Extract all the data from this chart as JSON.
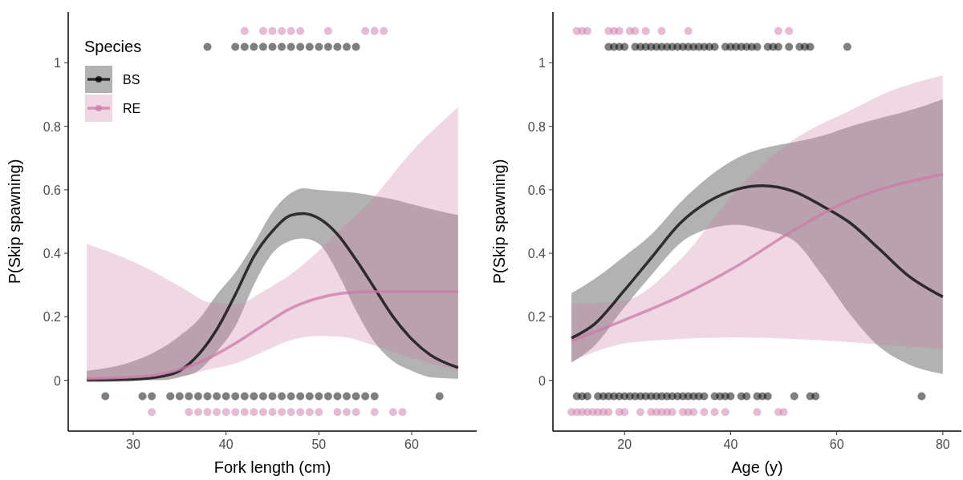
{
  "chart_data": [
    {
      "type": "line",
      "xlabel": "Fork length (cm)",
      "ylabel": "P(Skip spawning)",
      "legend_title": "Species",
      "legend": "top left",
      "grid": false,
      "xlim": [
        23,
        67
      ],
      "xticks": [
        30,
        40,
        50,
        60
      ],
      "ylim": [
        -0.16,
        1.16
      ],
      "yticks": [
        0,
        0.2,
        0.4,
        0.6,
        0.8,
        1
      ],
      "series": [
        {
          "name": "BS",
          "type": "line",
          "color": "#000000",
          "x": [
            25,
            30,
            33,
            35,
            37,
            39,
            41,
            43,
            45,
            47,
            48.3,
            50,
            52,
            54,
            56,
            58,
            60,
            62,
            65
          ],
          "values": [
            0,
            0.003,
            0.012,
            0.03,
            0.08,
            0.16,
            0.27,
            0.39,
            0.47,
            0.52,
            0.525,
            0.51,
            0.46,
            0.38,
            0.29,
            0.2,
            0.13,
            0.08,
            0.04
          ],
          "lower": [
            0,
            0,
            0,
            0.01,
            0.03,
            0.09,
            0.17,
            0.3,
            0.4,
            0.44,
            0.447,
            0.43,
            0.34,
            0.22,
            0.12,
            0.06,
            0.03,
            0.01,
            0.005
          ],
          "upper": [
            0.03,
            0.06,
            0.1,
            0.14,
            0.19,
            0.27,
            0.34,
            0.43,
            0.53,
            0.59,
            0.605,
            0.6,
            0.595,
            0.59,
            0.58,
            0.57,
            0.555,
            0.54,
            0.52
          ]
        },
        {
          "name": "RE",
          "type": "line",
          "color": "#cc79a7",
          "x": [
            25,
            31,
            35.4,
            38.3,
            41.1,
            44,
            46.8,
            49.7,
            52.5,
            55.4,
            60,
            65
          ],
          "values": [
            0.005,
            0.012,
            0.038,
            0.072,
            0.118,
            0.173,
            0.224,
            0.257,
            0.274,
            0.279,
            0.28,
            0.28
          ],
          "lower": [
            0,
            0.004,
            0.015,
            0.035,
            0.054,
            0.09,
            0.125,
            0.14,
            0.137,
            0.115,
            0.07,
            0.03
          ],
          "upper": [
            0.43,
            0.36,
            0.29,
            0.245,
            0.24,
            0.28,
            0.33,
            0.4,
            0.48,
            0.56,
            0.72,
            0.86
          ]
        },
        {
          "type": "scatter",
          "color": "#000000",
          "x": [
            38,
            41,
            42,
            43,
            44,
            45,
            46,
            47,
            48,
            49,
            50,
            51,
            52,
            53,
            54
          ],
          "values": [
            1.05,
            1.05,
            1.05,
            1.05,
            1.05,
            1.05,
            1.05,
            1.05,
            1.05,
            1.05,
            1.05,
            1.05,
            1.05,
            1.05,
            1.05
          ]
        },
        {
          "type": "scatter",
          "color": "#000000",
          "x": [
            27,
            31,
            32,
            34,
            35,
            36,
            37,
            38,
            39,
            40,
            41,
            42,
            43,
            44,
            45,
            46,
            47,
            48,
            49,
            50,
            51,
            52,
            53,
            54,
            55,
            56,
            63
          ],
          "values": [
            -0.05,
            -0.05,
            -0.05,
            -0.05,
            -0.05,
            -0.05,
            -0.05,
            -0.05,
            -0.05,
            -0.05,
            -0.05,
            -0.05,
            -0.05,
            -0.05,
            -0.05,
            -0.05,
            -0.05,
            -0.05,
            -0.05,
            -0.05,
            -0.05,
            -0.05,
            -0.05,
            -0.05,
            -0.05,
            -0.05,
            -0.05
          ]
        },
        {
          "type": "scatter",
          "color": "#cc79a7",
          "x": [
            42,
            44,
            45,
            46,
            47,
            48,
            51,
            55,
            56,
            57
          ],
          "values": [
            1.1,
            1.1,
            1.1,
            1.1,
            1.1,
            1.1,
            1.1,
            1.1,
            1.1,
            1.1
          ]
        },
        {
          "type": "scatter",
          "color": "#cc79a7",
          "x": [
            32,
            36,
            37,
            38,
            39,
            40,
            41,
            42,
            43,
            44,
            45,
            46,
            47,
            48,
            49,
            50,
            52,
            53,
            54,
            56,
            58,
            59
          ],
          "values": [
            -0.1,
            -0.1,
            -0.1,
            -0.1,
            -0.1,
            -0.1,
            -0.1,
            -0.1,
            -0.1,
            -0.1,
            -0.1,
            -0.1,
            -0.1,
            -0.1,
            -0.1,
            -0.1,
            -0.1,
            -0.1,
            -0.1,
            -0.1,
            -0.1,
            -0.1
          ]
        }
      ]
    },
    {
      "type": "line",
      "xlabel": "Age (y)",
      "ylabel": "P(Skip spawning)",
      "grid": false,
      "xlim": [
        6.5,
        83.5
      ],
      "xticks": [
        20,
        40,
        60,
        80
      ],
      "ylim": [
        -0.16,
        1.16
      ],
      "yticks": [
        0,
        0.2,
        0.4,
        0.6,
        0.8,
        1
      ],
      "series": [
        {
          "type": "line",
          "color": "#000000",
          "x": [
            10,
            14.4,
            19.7,
            25.1,
            30.5,
            35.8,
            41.2,
            46,
            51.9,
            57.2,
            62.6,
            68,
            73.3,
            80
          ],
          "values": [
            0.133,
            0.178,
            0.278,
            0.387,
            0.495,
            0.563,
            0.602,
            0.613,
            0.595,
            0.55,
            0.495,
            0.414,
            0.332,
            0.263
          ],
          "lower": [
            0.056,
            0.11,
            0.224,
            0.332,
            0.432,
            0.477,
            0.49,
            0.475,
            0.44,
            0.332,
            0.206,
            0.106,
            0.052,
            0.02
          ],
          "upper": [
            0.274,
            0.32,
            0.387,
            0.46,
            0.56,
            0.64,
            0.7,
            0.73,
            0.75,
            0.77,
            0.8,
            0.825,
            0.848,
            0.885
          ]
        },
        {
          "type": "line",
          "color": "#cc79a7",
          "x": [
            10,
            19.7,
            30.5,
            41.2,
            51.9,
            62.6,
            70,
            80
          ],
          "values": [
            0.124,
            0.188,
            0.265,
            0.36,
            0.473,
            0.568,
            0.61,
            0.649
          ],
          "lower": [
            0.06,
            0.115,
            0.13,
            0.135,
            0.13,
            0.12,
            0.11,
            0.1
          ],
          "upper": [
            0.24,
            0.25,
            0.38,
            0.6,
            0.758,
            0.85,
            0.91,
            0.96
          ]
        },
        {
          "type": "scatter",
          "color": "#000000",
          "x": [
            17,
            18,
            19,
            20,
            22,
            23,
            24,
            25,
            26,
            27,
            28,
            29,
            30,
            31,
            32,
            33,
            34,
            35,
            36,
            37,
            39,
            40,
            41,
            42,
            43,
            44,
            45,
            47,
            48,
            49,
            51,
            53,
            54,
            55,
            62
          ],
          "values": [
            1.05,
            1.05,
            1.05,
            1.05,
            1.05,
            1.05,
            1.05,
            1.05,
            1.05,
            1.05,
            1.05,
            1.05,
            1.05,
            1.05,
            1.05,
            1.05,
            1.05,
            1.05,
            1.05,
            1.05,
            1.05,
            1.05,
            1.05,
            1.05,
            1.05,
            1.05,
            1.05,
            1.05,
            1.05,
            1.05,
            1.05,
            1.05,
            1.05,
            1.05,
            1.05
          ]
        },
        {
          "type": "scatter",
          "color": "#000000",
          "x": [
            11,
            12,
            13,
            15,
            16,
            17,
            18,
            19,
            20,
            21,
            22,
            23,
            24,
            25,
            26,
            27,
            28,
            29,
            30,
            31,
            32,
            33,
            34,
            35,
            37,
            38,
            39,
            40,
            42,
            43,
            45,
            46,
            47,
            52,
            55,
            56,
            76
          ],
          "values": [
            -0.05,
            -0.05,
            -0.05,
            -0.05,
            -0.05,
            -0.05,
            -0.05,
            -0.05,
            -0.05,
            -0.05,
            -0.05,
            -0.05,
            -0.05,
            -0.05,
            -0.05,
            -0.05,
            -0.05,
            -0.05,
            -0.05,
            -0.05,
            -0.05,
            -0.05,
            -0.05,
            -0.05,
            -0.05,
            -0.05,
            -0.05,
            -0.05,
            -0.05,
            -0.05,
            -0.05,
            -0.05,
            -0.05,
            -0.05,
            -0.05,
            -0.05,
            -0.05
          ]
        },
        {
          "type": "scatter",
          "color": "#cc79a7",
          "x": [
            11,
            12,
            13,
            17,
            18,
            19,
            21,
            22,
            24,
            27,
            32,
            49,
            51
          ],
          "values": [
            1.1,
            1.1,
            1.1,
            1.1,
            1.1,
            1.1,
            1.1,
            1.1,
            1.1,
            1.1,
            1.1,
            1.1,
            1.1
          ]
        },
        {
          "type": "scatter",
          "color": "#cc79a7",
          "x": [
            10,
            11,
            12,
            13,
            14,
            15,
            16,
            17,
            19,
            20,
            23,
            25,
            26,
            27,
            28,
            29,
            31,
            32,
            33,
            35,
            37,
            39,
            45,
            49,
            50
          ],
          "values": [
            -0.1,
            -0.1,
            -0.1,
            -0.1,
            -0.1,
            -0.1,
            -0.1,
            -0.1,
            -0.1,
            -0.1,
            -0.1,
            -0.1,
            -0.1,
            -0.1,
            -0.1,
            -0.1,
            -0.1,
            -0.1,
            -0.1,
            -0.1,
            -0.1,
            -0.1,
            -0.1,
            -0.1,
            -0.1
          ]
        }
      ]
    }
  ]
}
